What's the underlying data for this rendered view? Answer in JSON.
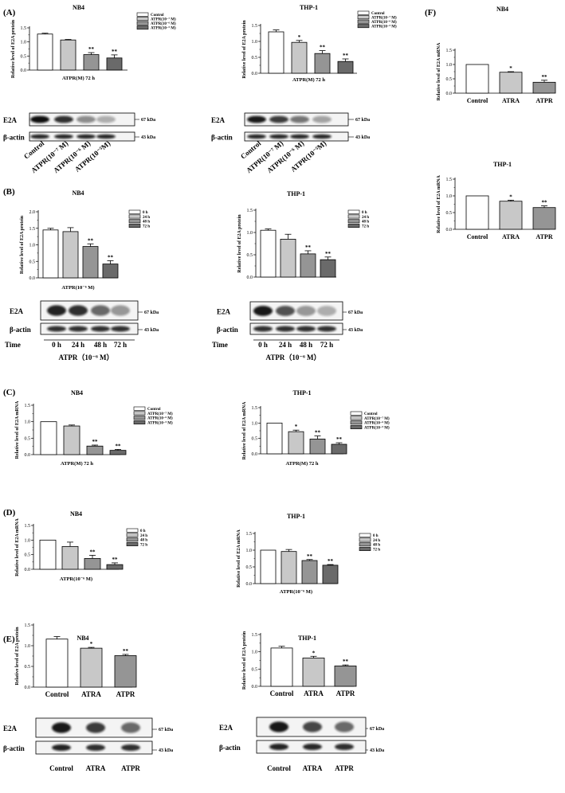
{
  "chart_data": [
    {
      "id": "A1",
      "type": "bar",
      "panel_label": "(A)",
      "title": "NB4",
      "ylabel": "Relative level of E2A protein",
      "xlabel": "ATPR(M) 72 h",
      "ylim": [
        0,
        1.5
      ],
      "yticks": [
        "0.0",
        "0.5",
        "1.0",
        "1.5"
      ],
      "legend_placement": "top-right",
      "categories": [
        "Control",
        "ATPR(10⁻⁷ M)",
        "ATPR(10⁻⁶ M)",
        "ATPR(10⁻⁵ M)"
      ],
      "values": [
        1.28,
        1.07,
        0.55,
        0.43
      ],
      "errors": [
        0.03,
        0.02,
        0.07,
        0.11
      ],
      "significance": [
        "",
        "",
        "**",
        "**"
      ],
      "blot": {
        "rows": [
          "E2A",
          "β-actin"
        ],
        "kda": [
          "67 kDa",
          "43 kDa"
        ],
        "lanes": [
          "Control",
          "ATPR(10⁻⁷ M)",
          "ATPR(10⁻⁶ M)",
          "ATPR(10⁻⁵M)"
        ]
      }
    },
    {
      "id": "A2",
      "type": "bar",
      "title": "THP-1",
      "ylabel": "Relative level of E2A protein",
      "xlabel": "ATPR(M) 72 h",
      "ylim": [
        0,
        1.5
      ],
      "yticks": [
        "0.0",
        "0.5",
        "1.0",
        "1.5"
      ],
      "legend_placement": "top-right",
      "categories": [
        "Control",
        "ATPR(10⁻⁷ M)",
        "ATPR(10⁻⁶ M)",
        "ATPR(10⁻⁵ M)"
      ],
      "values": [
        1.3,
        0.97,
        0.62,
        0.37
      ],
      "errors": [
        0.06,
        0.06,
        0.09,
        0.08
      ],
      "significance": [
        "",
        "*",
        "**",
        "**"
      ],
      "blot": {
        "rows": [
          "E2A",
          "β-actin"
        ],
        "kda": [
          "67 kDa",
          "43 kDa"
        ],
        "lanes": [
          "Control",
          "ATPR(10⁻⁷ M)",
          "ATPR(10⁻⁶ M)",
          "ATPR(10⁻⁵M)"
        ]
      }
    },
    {
      "id": "B1",
      "type": "bar",
      "panel_label": "(B)",
      "title": "NB4",
      "ylabel": "Relative level of E2A protein",
      "xlabel": "ATPR(10⁻⁶ M)",
      "ylim": [
        0,
        2.0
      ],
      "yticks": [
        "0.0",
        "0.5",
        "1.0",
        "1.5",
        "2.0"
      ],
      "legend_placement": "top-right",
      "categories": [
        "0 h",
        "24 h",
        "48 h",
        "72 h"
      ],
      "values": [
        1.45,
        1.4,
        0.95,
        0.42
      ],
      "errors": [
        0.05,
        0.12,
        0.08,
        0.1
      ],
      "significance": [
        "",
        "",
        "**",
        "**"
      ],
      "blot": {
        "rows": [
          "E2A",
          "β-actin"
        ],
        "kda": [
          "67 kDa",
          "43 kDa"
        ],
        "time_label": "Time",
        "lanes": [
          "0 h",
          "24 h",
          "48 h",
          "72 h"
        ],
        "caption": "ATPR（10⁻⁶ M）"
      }
    },
    {
      "id": "B2",
      "type": "bar",
      "title": "THP-1",
      "ylabel": "Relative level of E2A protein",
      "xlabel": "",
      "ylim": [
        0,
        1.5
      ],
      "yticks": [
        "0.0",
        "0.5",
        "1.0",
        "1.5"
      ],
      "legend_placement": "top-right",
      "categories": [
        "0 h",
        "24 h",
        "48 h",
        "72 h"
      ],
      "values": [
        1.05,
        0.85,
        0.52,
        0.39
      ],
      "errors": [
        0.03,
        0.11,
        0.07,
        0.06
      ],
      "significance": [
        "",
        "",
        "**",
        "**"
      ],
      "blot": {
        "rows": [
          "E2A",
          "β-actin"
        ],
        "kda": [
          "67 kDa",
          "43 kDa"
        ],
        "time_label": "Time",
        "lanes": [
          "0 h",
          "24 h",
          "48 h",
          "72 h"
        ],
        "caption": "ATPR（10⁻⁶ M）"
      }
    },
    {
      "id": "C1",
      "type": "bar",
      "panel_label": "(C)",
      "title": "NB4",
      "ylabel": "Relative level of E2A mRNA",
      "xlabel": "ATPR(M) 72 h",
      "ylim": [
        0,
        1.5
      ],
      "yticks": [
        "0.0",
        "0.5",
        "1.0",
        "1.5"
      ],
      "legend_placement": "top-right",
      "categories": [
        "Control",
        "ATPR(10⁻⁷ M)",
        "ATPR(10⁻⁶ M)",
        "ATPR(10⁻⁵ M)"
      ],
      "values": [
        1.0,
        0.87,
        0.26,
        0.13
      ],
      "errors": [
        0.0,
        0.03,
        0.03,
        0.03
      ],
      "significance": [
        "",
        "",
        "**",
        "**"
      ]
    },
    {
      "id": "C2",
      "type": "bar",
      "title": "THP-1",
      "ylabel": "Relative level of E2A mRNA",
      "xlabel": "ATPR(M) 72 h",
      "ylim": [
        0,
        1.5
      ],
      "yticks": [
        "0.0",
        "0.5",
        "1.0",
        "1.5"
      ],
      "legend_placement": "top-right",
      "categories": [
        "Control",
        "ATPR(10⁻⁷ M)",
        "ATPR(10⁻⁶ M)",
        "ATPR(10⁻⁵ M)"
      ],
      "values": [
        1.0,
        0.72,
        0.48,
        0.31
      ],
      "errors": [
        0.0,
        0.05,
        0.1,
        0.05
      ],
      "significance": [
        "",
        "*",
        "**",
        "**"
      ]
    },
    {
      "id": "D1",
      "type": "bar",
      "panel_label": "(D)",
      "title": "NB4",
      "ylabel": "Relative level of E2A mRNA",
      "xlabel": "ATPR(10⁻⁶ M)",
      "ylim": [
        0,
        1.5
      ],
      "yticks": [
        "0.0",
        "0.5",
        "1.0",
        "1.5"
      ],
      "legend_placement": "top-right",
      "categories": [
        "0 h",
        "24 h",
        "48 h",
        "72 h"
      ],
      "values": [
        1.0,
        0.78,
        0.37,
        0.16
      ],
      "errors": [
        0.0,
        0.15,
        0.11,
        0.06
      ],
      "significance": [
        "",
        "",
        "**",
        "**"
      ]
    },
    {
      "id": "D2",
      "type": "bar",
      "title": "THP-1",
      "ylabel": "Relative level of E2A mRNA",
      "xlabel": "ATPR(10⁻⁶ M)",
      "ylim": [
        0,
        1.5
      ],
      "yticks": [
        "0.0",
        "0.5",
        "1.0",
        "1.5"
      ],
      "legend_placement": "top-right",
      "categories": [
        "0 h",
        "24 h",
        "48 h",
        "72 h"
      ],
      "values": [
        1.0,
        0.96,
        0.69,
        0.55
      ],
      "errors": [
        0.0,
        0.06,
        0.03,
        0.02
      ],
      "significance": [
        "",
        "",
        "**",
        "**"
      ]
    },
    {
      "id": "E1",
      "type": "bar",
      "panel_label": "(E)",
      "title": "NB4",
      "ylabel": "Relative level of E2A protein",
      "xlabel": "",
      "ylim": [
        0,
        1.5
      ],
      "yticks": [
        "0.0",
        "0.5",
        "1.0",
        "1.5"
      ],
      "categories": [
        "Control",
        "ATRA",
        "ATPR"
      ],
      "values": [
        1.16,
        0.94,
        0.76
      ],
      "errors": [
        0.06,
        0.02,
        0.03
      ],
      "significance": [
        "",
        "*",
        "**"
      ],
      "blot": {
        "rows": [
          "E2A",
          "β-actin"
        ],
        "kda": [
          "67 kDa",
          "43 kDa"
        ],
        "lanes": [
          "Control",
          "ATRA",
          "ATPR"
        ]
      }
    },
    {
      "id": "E2",
      "type": "bar",
      "title": "THP-1",
      "ylabel": "Relative level of E2A protein",
      "xlabel": "",
      "ylim": [
        0,
        1.5
      ],
      "yticks": [
        "0.0",
        "0.5",
        "1.0",
        "1.5"
      ],
      "categories": [
        "Control",
        "ATRA",
        "ATPR"
      ],
      "values": [
        1.11,
        0.82,
        0.59
      ],
      "errors": [
        0.05,
        0.05,
        0.03
      ],
      "significance": [
        "",
        "*",
        "**"
      ],
      "blot": {
        "rows": [
          "E2A",
          "β-actin"
        ],
        "kda": [
          "67 kDa",
          "43 kDa"
        ],
        "lanes": [
          "Control",
          "ATRA",
          "ATPR"
        ]
      }
    },
    {
      "id": "F1",
      "type": "bar",
      "panel_label": "(F)",
      "title": "NB4",
      "ylabel": "Relative level of E2A mRNA",
      "xlabel": "",
      "ylim": [
        0,
        1.5
      ],
      "yticks": [
        "0.0",
        "0.5",
        "1.0",
        "1.5"
      ],
      "categories": [
        "Control",
        "ATRA",
        "ATPR"
      ],
      "values": [
        1.0,
        0.73,
        0.38
      ],
      "errors": [
        0.0,
        0.02,
        0.07
      ],
      "significance": [
        "",
        "*",
        "**"
      ]
    },
    {
      "id": "F2",
      "type": "bar",
      "title": "THP-1",
      "ylabel": "Relative level of E2A mRNA",
      "xlabel": "",
      "ylim": [
        0,
        1.5
      ],
      "yticks": [
        "0.0",
        "0.5",
        "1.0",
        "1.5"
      ],
      "categories": [
        "Control",
        "ATRA",
        "ATPR"
      ],
      "values": [
        1.0,
        0.84,
        0.65
      ],
      "errors": [
        0.0,
        0.03,
        0.05
      ],
      "significance": [
        "",
        "*",
        "**"
      ]
    }
  ],
  "colors": {
    "bar_fills": [
      "#ffffff",
      "#c8c8c8",
      "#959595",
      "#6a6a6a"
    ],
    "outline": "#000000"
  }
}
